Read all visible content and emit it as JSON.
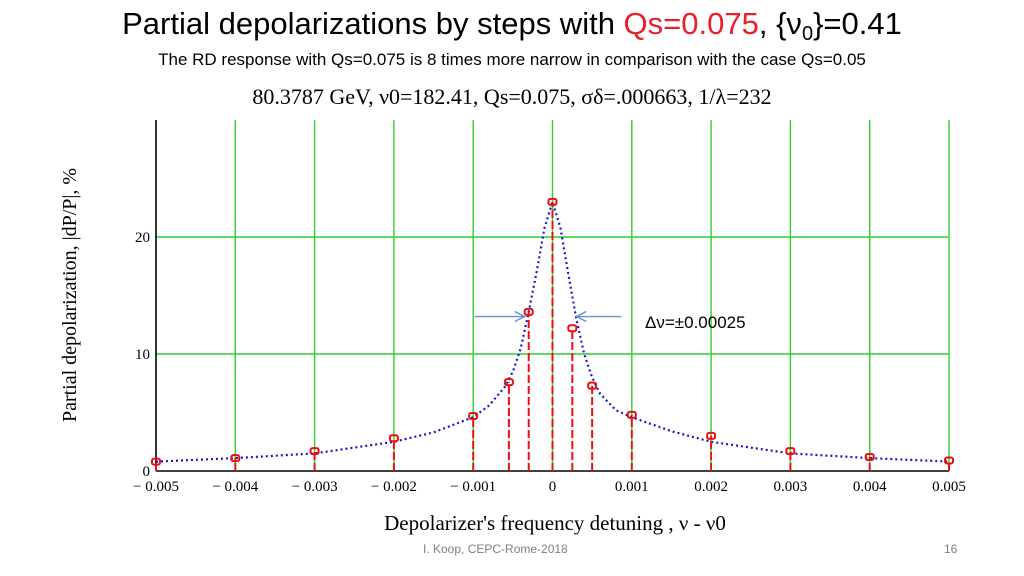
{
  "slide": {
    "title_prefix": "Partial depolarizations by steps with ",
    "title_accent": "Qs=0.075",
    "title_mid": ", {ν",
    "title_sub": "0",
    "title_suffix": "}=0.41",
    "subtitle": "The RD response with Qs=0.075 is 8 times more narrow in comparison with the case Qs=0.05",
    "footer_author": "I. Koop, CEPC-Rome-2018",
    "page_number": "16"
  },
  "colors": {
    "title_accent": "#e8202a",
    "grid": "#33cc33",
    "stem": "#e81010",
    "marker": "#e81010",
    "curve": "#1818c8",
    "arrow": "#6a8fd0"
  },
  "chart_data": {
    "type": "scatter",
    "title": "80.3787 GeV, ν0=182.41, Qs=0.075, σδ=.000663, 1/λ=232",
    "xlabel": "Depolarizer's frequency detuning , ν - ν0",
    "ylabel": "Partial depolarization, |dP/P|, %",
    "xlim": [
      -0.005,
      0.005
    ],
    "ylim": [
      0,
      30
    ],
    "x_ticks": [
      -0.005,
      -0.004,
      -0.003,
      -0.002,
      -0.001,
      0,
      0.001,
      0.002,
      0.003,
      0.004,
      0.005
    ],
    "x_tick_labels": [
      "− 0.005",
      "− 0.004",
      "− 0.003",
      "− 0.002",
      "− 0.001",
      "0",
      "0.001",
      "0.002",
      "0.003",
      "0.004",
      "0.005"
    ],
    "y_ticks": [
      0,
      10,
      20
    ],
    "y_tick_labels": [
      "0",
      "10",
      "20"
    ],
    "grid": true,
    "series": [
      {
        "style": "stem-with-markers",
        "x": [
          -0.005,
          -0.004,
          -0.003,
          -0.002,
          -0.001,
          -0.00055,
          -0.0003,
          0,
          0.00025,
          0.0005,
          0.001,
          0.002,
          0.003,
          0.004,
          0.005
        ],
        "y": [
          0.8,
          1.1,
          1.7,
          2.8,
          4.7,
          7.6,
          13.6,
          23.0,
          12.2,
          7.3,
          4.8,
          3.0,
          1.7,
          1.2,
          0.9
        ]
      },
      {
        "style": "dotted-line",
        "x": [
          -0.005,
          -0.004,
          -0.003,
          -0.002,
          -0.0015,
          -0.001,
          -0.0008,
          -0.0006,
          -0.0005,
          -0.0004,
          -0.0003,
          -0.0002,
          -0.0001,
          0,
          0.0001,
          0.0002,
          0.0003,
          0.0004,
          0.0005,
          0.0006,
          0.0008,
          0.001,
          0.0015,
          0.002,
          0.003,
          0.004,
          0.005
        ],
        "y": [
          0.8,
          1.1,
          1.5,
          2.5,
          3.3,
          4.6,
          5.6,
          7.2,
          8.5,
          10.5,
          13.6,
          17.0,
          20.8,
          23.0,
          20.8,
          16.8,
          13.0,
          10.0,
          8.0,
          6.6,
          5.2,
          4.6,
          3.4,
          2.5,
          1.5,
          1.1,
          0.8
        ]
      }
    ],
    "annotations": [
      {
        "text": "Δν=±0.00025",
        "arrows_to_x": [
          -0.0003,
          0.00025
        ],
        "at_y": 13.2
      }
    ]
  }
}
